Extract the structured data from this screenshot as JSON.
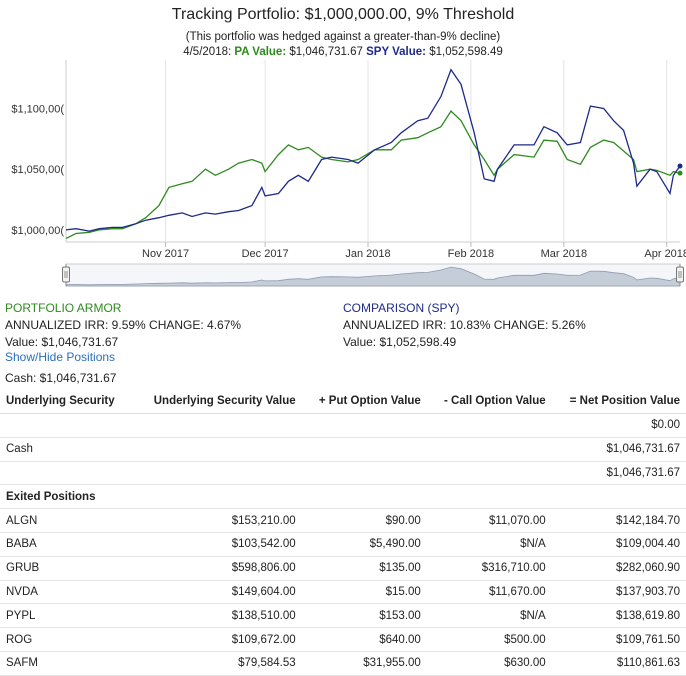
{
  "title": "Tracking Portfolio: $1,000,000.00, 9% Threshold",
  "subtitle": "(This portfolio was hedged against a greater-than-9% decline)",
  "readout": {
    "date": "4/5/2018:",
    "pa_label": "PA Value:",
    "pa_value": "$1,046,731.67",
    "spy_label": "SPY Value:",
    "spy_value": "$1,052,598.49"
  },
  "colors": {
    "pa": "#2e8b1f",
    "spy": "#1d2a8a",
    "grid": "#e4e4e4",
    "navigator_fill": "#c5cdd8"
  },
  "chart_data": {
    "type": "line",
    "title": "Tracking Portfolio: $1,000,000.00, 9% Threshold",
    "ylim": [
      990000,
      1140000
    ],
    "y_ticks": [
      {
        "value": 1000000,
        "label": "$1,000,00("
      },
      {
        "value": 1050000,
        "label": "$1,050,00("
      },
      {
        "value": 1100000,
        "label": "$1,100,00("
      }
    ],
    "x_ticks": [
      {
        "date": "2017-11-01",
        "label": "Nov 2017"
      },
      {
        "date": "2017-12-01",
        "label": "Dec 2017"
      },
      {
        "date": "2018-01-01",
        "label": "Jan 2018"
      },
      {
        "date": "2018-02-01",
        "label": "Feb 2018"
      },
      {
        "date": "2018-03-01",
        "label": "Mar 2018"
      },
      {
        "date": "2018-04-01",
        "label": "Apr 2018"
      }
    ],
    "xlim": [
      "2017-10-02",
      "2018-04-05"
    ],
    "grid": "vertical",
    "series": [
      {
        "name": "PA Value",
        "color": "#2e8b1f",
        "points": [
          [
            "2017-10-02",
            993000
          ],
          [
            "2017-10-05",
            997000
          ],
          [
            "2017-10-09",
            998000
          ],
          [
            "2017-10-12",
            1000000
          ],
          [
            "2017-10-16",
            1001000
          ],
          [
            "2017-10-19",
            1001000
          ],
          [
            "2017-10-23",
            1005000
          ],
          [
            "2017-10-26",
            1010000
          ],
          [
            "2017-10-30",
            1020000
          ],
          [
            "2017-11-02",
            1035000
          ],
          [
            "2017-11-06",
            1038000
          ],
          [
            "2017-11-09",
            1040000
          ],
          [
            "2017-11-13",
            1050000
          ],
          [
            "2017-11-16",
            1045000
          ],
          [
            "2017-11-20",
            1050000
          ],
          [
            "2017-11-23",
            1055000
          ],
          [
            "2017-11-27",
            1058000
          ],
          [
            "2017-11-30",
            1055000
          ],
          [
            "2017-12-01",
            1048000
          ],
          [
            "2017-12-05",
            1062000
          ],
          [
            "2017-12-08",
            1070000
          ],
          [
            "2017-12-11",
            1066000
          ],
          [
            "2017-12-14",
            1068000
          ],
          [
            "2017-12-18",
            1060000
          ],
          [
            "2017-12-21",
            1058000
          ],
          [
            "2017-12-26",
            1056000
          ],
          [
            "2017-12-29",
            1058000
          ],
          [
            "2018-01-03",
            1066000
          ],
          [
            "2018-01-08",
            1066000
          ],
          [
            "2018-01-11",
            1074000
          ],
          [
            "2018-01-16",
            1076000
          ],
          [
            "2018-01-19",
            1080000
          ],
          [
            "2018-01-23",
            1085000
          ],
          [
            "2018-01-26",
            1098000
          ],
          [
            "2018-01-29",
            1090000
          ],
          [
            "2018-02-02",
            1070000
          ],
          [
            "2018-02-05",
            1058000
          ],
          [
            "2018-02-08",
            1045000
          ],
          [
            "2018-02-09",
            1050000
          ],
          [
            "2018-02-14",
            1062000
          ],
          [
            "2018-02-20",
            1060000
          ],
          [
            "2018-02-23",
            1074000
          ],
          [
            "2018-02-27",
            1073000
          ],
          [
            "2018-03-02",
            1058000
          ],
          [
            "2018-03-06",
            1054000
          ],
          [
            "2018-03-09",
            1068000
          ],
          [
            "2018-03-13",
            1074000
          ],
          [
            "2018-03-16",
            1072000
          ],
          [
            "2018-03-19",
            1065000
          ],
          [
            "2018-03-22",
            1058000
          ],
          [
            "2018-03-23",
            1048000
          ],
          [
            "2018-03-27",
            1050000
          ],
          [
            "2018-03-29",
            1049000
          ],
          [
            "2018-04-02",
            1045000
          ],
          [
            "2018-04-03",
            1048000
          ],
          [
            "2018-04-05",
            1046732
          ]
        ]
      },
      {
        "name": "SPY Value",
        "color": "#1d2a8a",
        "points": [
          [
            "2017-10-02",
            1000000
          ],
          [
            "2017-10-05",
            1001000
          ],
          [
            "2017-10-09",
            999000
          ],
          [
            "2017-10-12",
            1001000
          ],
          [
            "2017-10-16",
            1002000
          ],
          [
            "2017-10-19",
            1002000
          ],
          [
            "2017-10-23",
            1005000
          ],
          [
            "2017-10-26",
            1008000
          ],
          [
            "2017-10-30",
            1010000
          ],
          [
            "2017-11-02",
            1012000
          ],
          [
            "2017-11-06",
            1014000
          ],
          [
            "2017-11-09",
            1011000
          ],
          [
            "2017-11-13",
            1014000
          ],
          [
            "2017-11-16",
            1013000
          ],
          [
            "2017-11-20",
            1015000
          ],
          [
            "2017-11-23",
            1016000
          ],
          [
            "2017-11-27",
            1020000
          ],
          [
            "2017-11-30",
            1035000
          ],
          [
            "2017-12-01",
            1028000
          ],
          [
            "2017-12-05",
            1030000
          ],
          [
            "2017-12-08",
            1040000
          ],
          [
            "2017-12-11",
            1045000
          ],
          [
            "2017-12-14",
            1040000
          ],
          [
            "2017-12-18",
            1058000
          ],
          [
            "2017-12-21",
            1060000
          ],
          [
            "2017-12-26",
            1058000
          ],
          [
            "2017-12-29",
            1055000
          ],
          [
            "2018-01-03",
            1066000
          ],
          [
            "2018-01-08",
            1072000
          ],
          [
            "2018-01-11",
            1080000
          ],
          [
            "2018-01-16",
            1090000
          ],
          [
            "2018-01-19",
            1092000
          ],
          [
            "2018-01-23",
            1110000
          ],
          [
            "2018-01-26",
            1132000
          ],
          [
            "2018-01-29",
            1120000
          ],
          [
            "2018-02-02",
            1080000
          ],
          [
            "2018-02-05",
            1042000
          ],
          [
            "2018-02-08",
            1040000
          ],
          [
            "2018-02-09",
            1050000
          ],
          [
            "2018-02-14",
            1070000
          ],
          [
            "2018-02-20",
            1070000
          ],
          [
            "2018-02-23",
            1085000
          ],
          [
            "2018-02-27",
            1080000
          ],
          [
            "2018-03-02",
            1070000
          ],
          [
            "2018-03-06",
            1072000
          ],
          [
            "2018-03-09",
            1102000
          ],
          [
            "2018-03-13",
            1100000
          ],
          [
            "2018-03-16",
            1090000
          ],
          [
            "2018-03-19",
            1082000
          ],
          [
            "2018-03-22",
            1055000
          ],
          [
            "2018-03-23",
            1036000
          ],
          [
            "2018-03-27",
            1050000
          ],
          [
            "2018-03-29",
            1048000
          ],
          [
            "2018-04-02",
            1030000
          ],
          [
            "2018-04-03",
            1045000
          ],
          [
            "2018-04-05",
            1052598
          ]
        ]
      }
    ]
  },
  "pa_panel": {
    "heading": "PORTFOLIO ARMOR",
    "stats": "ANNUALIZED IRR: 9.59% CHANGE: 4.67%",
    "value": "Value: $1,046,731.67"
  },
  "spy_panel": {
    "heading": "COMPARISON (SPY)",
    "stats": "ANNUALIZED IRR: 10.83% CHANGE: 5.26%",
    "value": "Value: $1,052,598.49"
  },
  "toggle_label": "Show/Hide Positions",
  "cash_line": "Cash: $1,046,731.67",
  "table": {
    "headers": [
      "Underlying Security",
      "Underlying Security Value",
      "+ Put Option Value",
      "- Call Option Value",
      "= Net Position Value"
    ],
    "rows": [
      {
        "kind": "row",
        "cells": [
          "",
          "",
          "",
          "",
          "$0.00"
        ]
      },
      {
        "kind": "row",
        "cells": [
          "Cash",
          "",
          "",
          "",
          "$1,046,731.67"
        ]
      },
      {
        "kind": "row",
        "cells": [
          "",
          "",
          "",
          "",
          "$1,046,731.67"
        ]
      },
      {
        "kind": "section",
        "cells": [
          "Exited Positions",
          "",
          "",
          "",
          ""
        ]
      },
      {
        "kind": "row",
        "cells": [
          "ALGN",
          "$153,210.00",
          "$90.00",
          "$11,070.00",
          "$142,184.70"
        ]
      },
      {
        "kind": "row",
        "cells": [
          "BABA",
          "$103,542.00",
          "$5,490.00",
          "$N/A",
          "$109,004.40"
        ]
      },
      {
        "kind": "row",
        "cells": [
          "GRUB",
          "$598,806.00",
          "$135.00",
          "$316,710.00",
          "$282,060.90"
        ]
      },
      {
        "kind": "row",
        "cells": [
          "NVDA",
          "$149,604.00",
          "$15.00",
          "$11,670.00",
          "$137,903.70"
        ]
      },
      {
        "kind": "row",
        "cells": [
          "PYPL",
          "$138,510.00",
          "$153.00",
          "$N/A",
          "$138,619.80"
        ]
      },
      {
        "kind": "row",
        "cells": [
          "ROG",
          "$109,672.00",
          "$640.00",
          "$500.00",
          "$109,761.50"
        ]
      },
      {
        "kind": "row",
        "cells": [
          "SAFM",
          "$79,584.53",
          "$31,955.00",
          "$630.00",
          "$110,861.63"
        ]
      }
    ]
  }
}
